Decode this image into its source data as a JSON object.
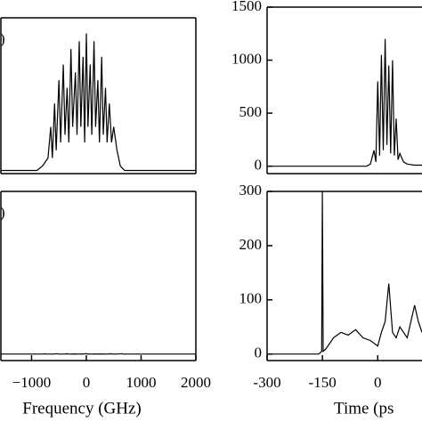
{
  "chart_data": [
    {
      "type": "line",
      "panel_label": ")",
      "color": "#000000",
      "x": [
        -1560,
        -900,
        -800,
        -700,
        -650,
        -620,
        -580,
        -550,
        -500,
        -470,
        -420,
        -390,
        -350,
        -320,
        -280,
        -250,
        -200,
        -170,
        -130,
        -100,
        -60,
        -30,
        0,
        30,
        70,
        100,
        140,
        170,
        210,
        240,
        280,
        310,
        350,
        380,
        420,
        460,
        500,
        560,
        620,
        700,
        2000
      ],
      "values": [
        0.02,
        0.02,
        0.05,
        0.1,
        0.3,
        0.1,
        0.45,
        0.15,
        0.6,
        0.2,
        0.7,
        0.25,
        0.55,
        0.2,
        0.8,
        0.3,
        0.65,
        0.25,
        0.85,
        0.3,
        0.75,
        0.2,
        0.9,
        0.3,
        0.7,
        0.25,
        0.85,
        0.3,
        0.6,
        0.2,
        0.75,
        0.25,
        0.55,
        0.2,
        0.45,
        0.2,
        0.3,
        0.15,
        0.05,
        0.02,
        0.02
      ],
      "xlim": [
        -1560,
        2000
      ],
      "ylim": [
        0,
        1
      ]
    },
    {
      "type": "line",
      "color": "#000000",
      "x": [
        -300,
        -30,
        -20,
        -10,
        -5,
        0,
        5,
        10,
        15,
        20,
        25,
        30,
        35,
        40,
        45,
        50,
        55,
        60,
        70,
        80,
        100,
        120
      ],
      "values": [
        0,
        0,
        20,
        150,
        40,
        800,
        100,
        1050,
        150,
        1200,
        200,
        950,
        120,
        1000,
        100,
        450,
        60,
        120,
        40,
        20,
        10,
        10
      ],
      "xlim": [
        -300,
        120
      ],
      "ylim": [
        -70,
        1500
      ],
      "yticks": [
        0,
        500,
        1000,
        1500
      ]
    },
    {
      "type": "line",
      "panel_label": ")",
      "color": "#000000",
      "x": [
        -1560,
        -800,
        -750,
        -720,
        -600,
        -530,
        -500,
        -400,
        -350,
        -320,
        -250,
        -200,
        -170,
        -100,
        -50,
        0,
        20,
        60,
        100,
        150,
        200,
        250,
        300,
        350,
        400,
        450,
        480,
        550,
        650,
        670,
        700,
        2000
      ],
      "values": [
        0.02,
        0.02,
        0.5,
        0.02,
        0.05,
        0.6,
        0.05,
        0.1,
        0.4,
        0.05,
        0.1,
        0.3,
        0.05,
        0.08,
        0.1,
        0.84,
        0.1,
        0.15,
        0.05,
        0.08,
        0.12,
        0.15,
        0.12,
        0.05,
        0.08,
        0.55,
        0.05,
        0.03,
        0.6,
        0.03,
        0.02,
        0.02
      ],
      "xlim": [
        -1560,
        2000
      ],
      "ylim": [
        -12,
        300
      ],
      "xticks": [
        {
          "value": -1000,
          "label": "−1000"
        },
        0,
        1000,
        2000
      ],
      "xlabel": "Frequency (GHz)"
    },
    {
      "type": "line",
      "color": "#000000",
      "x": [
        -300,
        -160,
        -152,
        -150,
        -148,
        -140,
        -120,
        -100,
        -80,
        -60,
        -40,
        -20,
        0,
        10,
        20,
        30,
        40,
        50,
        60,
        80,
        100,
        110,
        120
      ],
      "values": [
        0,
        0,
        5,
        300,
        5,
        10,
        30,
        40,
        35,
        45,
        30,
        25,
        15,
        40,
        60,
        130,
        40,
        30,
        50,
        30,
        90,
        60,
        40
      ],
      "xlim": [
        -300,
        120
      ],
      "ylim": [
        -12,
        300
      ],
      "xticks": [
        -300,
        -150,
        0
      ],
      "yticks": [
        0,
        100,
        200,
        300
      ],
      "xlabel": "Time (ps"
    }
  ]
}
